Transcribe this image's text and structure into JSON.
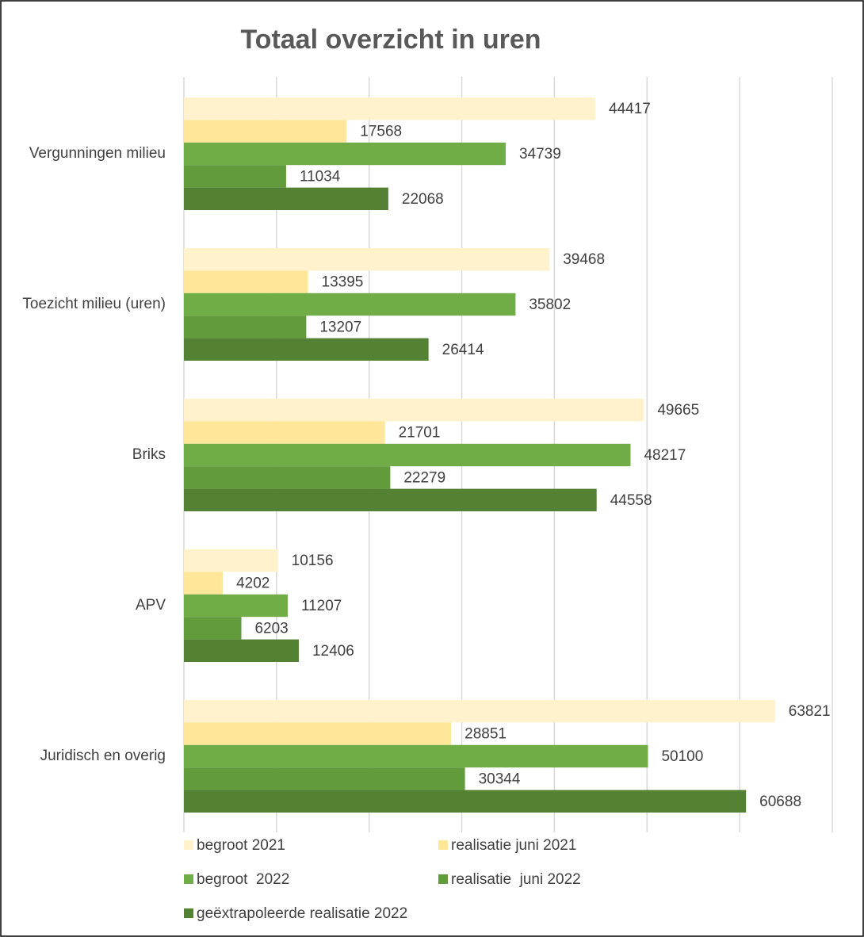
{
  "chart_data": {
    "type": "hbar",
    "title": "Totaal overzicht in uren",
    "categories": [
      "Vergunningen milieu",
      "Toezicht milieu (uren)",
      "Briks",
      "APV",
      "Juridisch en overig"
    ],
    "series": [
      {
        "name": "begroot 2021",
        "color": "#fff2cc",
        "values": [
          44417,
          39468,
          49665,
          10156,
          63821
        ]
      },
      {
        "name": "realisatie juni 2021",
        "color": "#ffe699",
        "values": [
          17568,
          13395,
          21701,
          4202,
          28851
        ]
      },
      {
        "name": "begroot  2022",
        "color": "#70ad47",
        "values": [
          34739,
          35802,
          48217,
          11207,
          50100
        ]
      },
      {
        "name": "realisatie  juni 2022",
        "color": "#619b3c",
        "values": [
          11034,
          13207,
          22279,
          6203,
          30344
        ]
      },
      {
        "name": "geëxtrapoleerde realisatie 2022",
        "color": "#548235",
        "values": [
          22068,
          26414,
          44558,
          12406,
          60688
        ]
      }
    ],
    "xlim": [
      0,
      70000
    ],
    "xticks": [
      0,
      10000,
      20000,
      30000,
      40000,
      50000,
      60000,
      70000
    ],
    "grid": true
  }
}
